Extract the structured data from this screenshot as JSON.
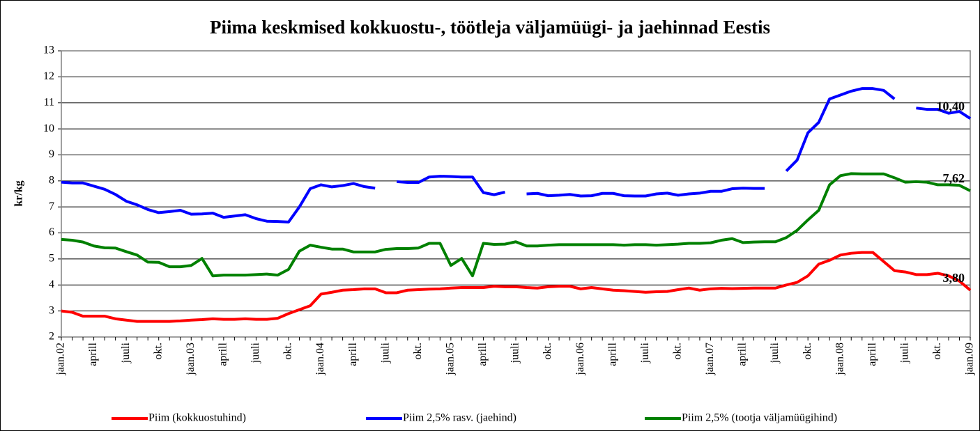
{
  "chart_data": {
    "type": "line",
    "title": "Piima keskmised kokkuostu-, töötleja väljamüügi- ja jaehinnad Eestis",
    "y_label": "kr/kg",
    "categories": [
      "jaan.02",
      null,
      null,
      "aprill",
      null,
      null,
      "juuli",
      null,
      null,
      "okt.",
      null,
      null,
      "jaan.03",
      null,
      null,
      "aprill",
      null,
      null,
      "juuli",
      null,
      null,
      "okt.",
      null,
      null,
      "jaan.04",
      null,
      null,
      "aprill",
      null,
      null,
      "juuli",
      null,
      null,
      "okt.",
      null,
      null,
      "jaan.05",
      null,
      null,
      "aprill",
      null,
      null,
      "juuli",
      null,
      null,
      "okt.",
      null,
      null,
      "jaan.06",
      null,
      null,
      "aprill",
      null,
      null,
      "juuli",
      null,
      null,
      "okt.",
      null,
      null,
      "jaan.07",
      null,
      null,
      "aprill",
      null,
      null,
      "juuli",
      null,
      null,
      "okt.",
      null,
      null,
      "jaan.08",
      null,
      null,
      "aprill",
      null,
      null,
      "juuli",
      null,
      null,
      "okt.",
      null,
      null,
      "jaan.09"
    ],
    "series": [
      {
        "name": "Piim (kokkuostuhind)",
        "color": "#ff0000",
        "values": [
          3.0,
          2.95,
          2.8,
          2.8,
          2.8,
          2.7,
          2.65,
          2.6,
          2.6,
          2.6,
          2.6,
          2.62,
          2.65,
          2.67,
          2.7,
          2.68,
          2.68,
          2.7,
          2.68,
          2.68,
          2.72,
          2.9,
          3.05,
          3.2,
          3.65,
          3.72,
          3.8,
          3.82,
          3.85,
          3.85,
          3.7,
          3.7,
          3.8,
          3.82,
          3.84,
          3.85,
          3.88,
          3.9,
          3.9,
          3.9,
          3.95,
          3.93,
          3.93,
          3.9,
          3.88,
          3.93,
          3.95,
          3.95,
          3.85,
          3.9,
          3.85,
          3.8,
          3.78,
          3.75,
          3.72,
          3.74,
          3.75,
          3.82,
          3.88,
          3.8,
          3.85,
          3.87,
          3.86,
          3.87,
          3.88,
          3.88,
          3.88,
          4.0,
          4.1,
          4.35,
          4.8,
          4.95,
          5.15,
          5.22,
          5.25,
          5.25,
          4.9,
          4.55,
          4.5,
          4.4,
          4.4,
          4.45,
          4.35,
          4.15,
          3.8
        ],
        "value_labels": {
          "84": "3,80"
        }
      },
      {
        "name": "Piim 2,5% rasv. (jaehind)",
        "color": "#0000ff",
        "values": [
          7.95,
          7.92,
          7.92,
          7.8,
          7.68,
          7.48,
          7.22,
          7.08,
          6.9,
          6.78,
          6.82,
          6.87,
          6.72,
          6.73,
          6.76,
          6.6,
          6.65,
          6.7,
          6.55,
          6.45,
          6.44,
          6.42,
          7.0,
          7.7,
          7.85,
          7.77,
          7.82,
          7.9,
          7.78,
          7.72,
          null,
          7.97,
          7.94,
          7.94,
          8.15,
          8.18,
          8.17,
          8.15,
          8.15,
          7.55,
          7.47,
          7.57,
          null,
          7.5,
          7.52,
          7.43,
          7.45,
          7.48,
          7.42,
          7.43,
          7.52,
          7.52,
          7.43,
          7.42,
          7.42,
          7.5,
          7.53,
          7.45,
          7.5,
          7.53,
          7.6,
          7.6,
          7.7,
          7.72,
          7.71,
          7.71,
          null,
          8.38,
          8.8,
          9.85,
          10.25,
          11.15,
          11.3,
          11.45,
          11.55,
          11.55,
          11.48,
          11.15,
          null,
          10.8,
          10.75,
          10.75,
          10.6,
          10.67,
          10.4
        ],
        "value_labels": {
          "84": "10,40"
        }
      },
      {
        "name": "Piim 2,5% (tootja väljamüügihind)",
        "color": "#008000",
        "values": [
          5.75,
          5.72,
          5.65,
          5.5,
          5.43,
          5.42,
          5.28,
          5.15,
          4.88,
          4.87,
          4.7,
          4.7,
          4.75,
          5.02,
          4.35,
          4.38,
          4.38,
          4.38,
          4.4,
          4.42,
          4.38,
          4.6,
          5.3,
          5.53,
          5.45,
          5.38,
          5.38,
          5.27,
          5.27,
          5.27,
          5.37,
          5.4,
          5.4,
          5.42,
          5.6,
          5.6,
          4.75,
          5.02,
          4.35,
          5.6,
          5.56,
          5.57,
          5.66,
          5.5,
          5.5,
          5.53,
          5.55,
          5.55,
          5.55,
          5.55,
          5.55,
          5.55,
          5.53,
          5.55,
          5.55,
          5.53,
          5.55,
          5.57,
          5.6,
          5.6,
          5.62,
          5.72,
          5.78,
          5.63,
          5.65,
          5.66,
          5.66,
          5.82,
          6.1,
          6.5,
          6.87,
          7.85,
          8.2,
          8.28,
          8.27,
          8.27,
          8.27,
          8.12,
          7.95,
          7.97,
          7.95,
          7.85,
          7.85,
          7.83,
          7.62
        ],
        "value_labels": {
          "84": "7,62"
        }
      }
    ],
    "ylim": [
      2,
      13
    ],
    "yticks": [
      2,
      3,
      4,
      5,
      6,
      7,
      8,
      9,
      10,
      11,
      12,
      13
    ],
    "grid": true,
    "legend": "bottom"
  }
}
